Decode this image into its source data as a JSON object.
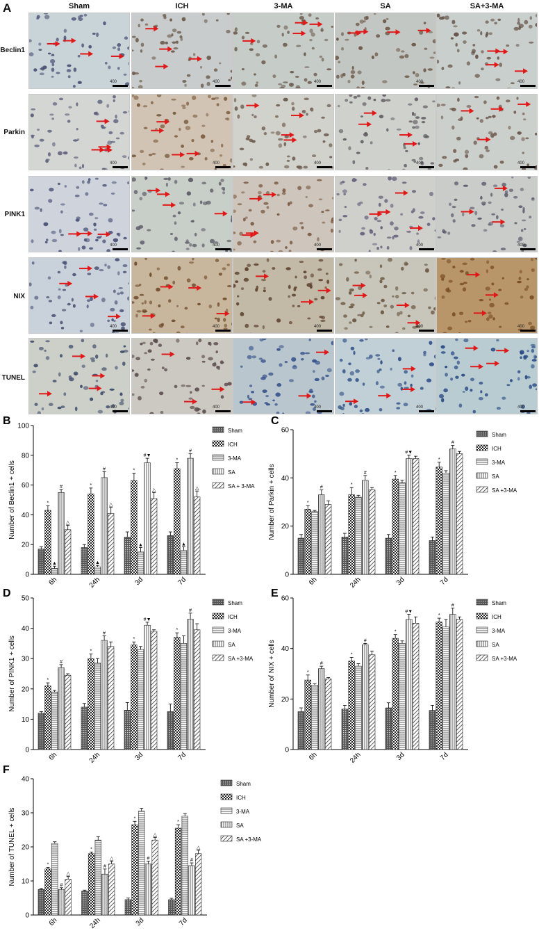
{
  "panel_a": {
    "letter": "A",
    "columns": [
      "Sham",
      "ICH",
      "3-MA",
      "SA",
      "SA+3-MA"
    ],
    "rows": [
      "Beclin1",
      "Parkin",
      "PINK1",
      "NIX",
      "TUNEL"
    ],
    "scale_label": "400",
    "backgrounds": {
      "Beclin1": [
        "#c8d4d8",
        "#c9cccc",
        "#c6ccc8",
        "#c3c7c3",
        "#c9cfcd"
      ],
      "Parkin": [
        "#d3d6d2",
        "#d1c4b4",
        "#d2d2cc",
        "#cfd1cd",
        "#ccd0cc"
      ],
      "PINK1": [
        "#cfd3dc",
        "#c8cfc8",
        "#cec6bc",
        "#cfd0cc",
        "#c9ccc9"
      ],
      "NIX": [
        "#c9d1da",
        "#c9b79d",
        "#c2b9a6",
        "#c8c6ba",
        "#b9956a"
      ],
      "TUNEL": [
        "#cdd0c8",
        "#ccc9c2",
        "#b9c6ce",
        "#c0d0d6",
        "#b8ccd2"
      ]
    },
    "nuclei_colors": {
      "Beclin1": [
        "#4a4f74",
        "#6a5a4a",
        "#6b5a4c",
        "#6a5544",
        "#645246"
      ],
      "Parkin": [
        "#5a5d7a",
        "#7a5a3c",
        "#6c5b4e",
        "#5f5a60",
        "#6a5448"
      ],
      "PINK1": [
        "#4c5278",
        "#5a5a66",
        "#7a5a42",
        "#65607a",
        "#5c5a6c"
      ],
      "NIX": [
        "#4c5478",
        "#6e4a2a",
        "#5e4430",
        "#6a5640",
        "#7a4e24"
      ],
      "TUNEL": [
        "#3c4a6a",
        "#5a4a4c",
        "#34508a",
        "#2e4e86",
        "#2a4a84"
      ]
    },
    "arrow_color": "#e01818"
  },
  "charts": [
    {
      "letter": "B",
      "type": "bar",
      "ylabel": "Number of Beclin1 + cells",
      "ylim": [
        0,
        100
      ],
      "yticks": [
        0,
        20,
        40,
        60,
        80,
        100
      ],
      "categories": [
        "6h",
        "24h",
        "3d",
        "7d"
      ],
      "legend": [
        "Sham",
        "ICH",
        "3-MA",
        "SA",
        "SA + 3-MA"
      ],
      "series": [
        {
          "name": "Sham",
          "values": [
            17,
            18,
            25,
            26
          ],
          "errors": [
            1.5,
            2,
            3.5,
            2.5
          ]
        },
        {
          "name": "ICH",
          "values": [
            43,
            54,
            63,
            71
          ],
          "errors": [
            3,
            4,
            5,
            4
          ]
        },
        {
          "name": "3-MA",
          "values": [
            4,
            5,
            15,
            16
          ],
          "errors": [
            1.5,
            1,
            3,
            2.5
          ]
        },
        {
          "name": "SA",
          "values": [
            55,
            65,
            75,
            78
          ],
          "errors": [
            2,
            4,
            3,
            3
          ]
        },
        {
          "name": "SA + 3-MA",
          "values": [
            30,
            41,
            51,
            52
          ],
          "errors": [
            3,
            4,
            4,
            4
          ]
        }
      ],
      "marks": [
        [
          "",
          "*",
          "▲",
          "#",
          "△"
        ],
        [
          "",
          "*",
          "▲",
          "#",
          "△"
        ],
        [
          "",
          "*",
          "▲",
          "#▼",
          "△"
        ],
        [
          "",
          "*",
          "▲",
          "#",
          "△"
        ]
      ]
    },
    {
      "letter": "C",
      "type": "bar",
      "ylabel": "Number of Parkin + cells",
      "ylim": [
        0,
        60
      ],
      "yticks": [
        0,
        20,
        40,
        60
      ],
      "categories": [
        "6h",
        "24h",
        "3d",
        "7d"
      ],
      "legend": [
        "Sham",
        "ICH",
        "3-MA",
        "SA",
        "SA +3-MA"
      ],
      "series": [
        {
          "name": "Sham",
          "values": [
            15,
            15.5,
            15,
            14
          ],
          "errors": [
            1.5,
            1.5,
            1.5,
            1.5
          ]
        },
        {
          "name": "ICH",
          "values": [
            27,
            33,
            39.5,
            44.5
          ],
          "errors": [
            1.5,
            3,
            1.5,
            2
          ]
        },
        {
          "name": "3-MA",
          "values": [
            26,
            32,
            38,
            42
          ],
          "errors": [
            0.5,
            0.8,
            1,
            1
          ]
        },
        {
          "name": "SA",
          "values": [
            33,
            39,
            48,
            52
          ],
          "errors": [
            2,
            2,
            1.5,
            1.5
          ]
        },
        {
          "name": "SA +3-MA",
          "values": [
            29,
            35,
            48,
            50
          ],
          "errors": [
            1.5,
            1,
            1,
            1
          ]
        }
      ],
      "marks": [
        [
          "",
          "*",
          "",
          "#",
          ""
        ],
        [
          "",
          "*",
          "",
          "#",
          ""
        ],
        [
          "",
          "*",
          "",
          "#▼",
          ""
        ],
        [
          "",
          "*",
          "",
          "#",
          ""
        ]
      ]
    },
    {
      "letter": "D",
      "type": "bar",
      "ylabel": "Number of PINK1 + cells",
      "ylim": [
        0,
        50
      ],
      "yticks": [
        0,
        10,
        20,
        30,
        40,
        50
      ],
      "categories": [
        "6h",
        "24h",
        "3d",
        "7d"
      ],
      "legend": [
        "Sham",
        "ICH",
        "3-MA",
        "SA",
        "SA +3-MA"
      ],
      "series": [
        {
          "name": "Sham",
          "values": [
            12,
            14,
            13,
            12.5
          ],
          "errors": [
            0.5,
            1.2,
            2.5,
            2.5
          ]
        },
        {
          "name": "ICH",
          "values": [
            21,
            30,
            34.5,
            37
          ],
          "errors": [
            1,
            1.5,
            1,
            1.5
          ]
        },
        {
          "name": "3-MA",
          "values": [
            19,
            28.5,
            33,
            35
          ],
          "errors": [
            0.5,
            1.5,
            1,
            2.5
          ]
        },
        {
          "name": "SA",
          "values": [
            27,
            36,
            41,
            43
          ],
          "errors": [
            1,
            1.5,
            1,
            2
          ]
        },
        {
          "name": "SA +3-MA",
          "values": [
            24.5,
            34,
            39,
            39.5
          ],
          "errors": [
            0.5,
            1.5,
            0.5,
            2
          ]
        }
      ],
      "marks": [
        [
          "",
          "*",
          "",
          "#",
          ""
        ],
        [
          "",
          "*",
          "",
          "#",
          ""
        ],
        [
          "",
          "*",
          "",
          "#▼",
          ""
        ],
        [
          "",
          "*",
          "",
          "#",
          ""
        ]
      ]
    },
    {
      "letter": "E",
      "type": "bar",
      "ylabel": "Number of NIX + cells",
      "ylim": [
        0,
        60
      ],
      "yticks": [
        0,
        20,
        40,
        60
      ],
      "categories": [
        "6h",
        "24h",
        "3d",
        "7d"
      ],
      "legend": [
        "Sham",
        "ICH",
        "3-MA",
        "SA",
        "SA +3-MA"
      ],
      "series": [
        {
          "name": "Sham",
          "values": [
            15,
            16,
            16.5,
            15.5
          ],
          "errors": [
            1.5,
            1.5,
            2,
            2
          ]
        },
        {
          "name": "ICH",
          "values": [
            27.5,
            35,
            44,
            50.5
          ],
          "errors": [
            2,
            1.5,
            1.5,
            1.5
          ]
        },
        {
          "name": "3-MA",
          "values": [
            25.5,
            33,
            42,
            48.5
          ],
          "errors": [
            0.5,
            1,
            1,
            3
          ]
        },
        {
          "name": "SA",
          "values": [
            32,
            41.5,
            51.5,
            53.5
          ],
          "errors": [
            1,
            0.5,
            2,
            2.5
          ]
        },
        {
          "name": "SA +3-MA",
          "values": [
            28,
            37.5,
            50,
            51.5
          ],
          "errors": [
            0.5,
            1.5,
            2.5,
            1
          ]
        }
      ],
      "marks": [
        [
          "",
          "*",
          "",
          "#",
          ""
        ],
        [
          "",
          "*",
          "",
          "#",
          ""
        ],
        [
          "",
          "*",
          "",
          "#▼",
          ""
        ],
        [
          "",
          "*",
          "",
          "#",
          ""
        ]
      ]
    },
    {
      "letter": "F",
      "type": "bar",
      "ylabel": "Number of TUNEL + cells",
      "ylim": [
        0,
        40
      ],
      "yticks": [
        0,
        10,
        20,
        30,
        40
      ],
      "categories": [
        "6h",
        "24h",
        "3d",
        "7d"
      ],
      "legend": [
        "Sham",
        "ICH",
        "3-MA",
        "SA",
        "SA +3-MA"
      ],
      "series": [
        {
          "name": "Sham",
          "values": [
            7.5,
            7,
            4.5,
            4.5
          ],
          "errors": [
            0.3,
            0.3,
            0.5,
            0.4
          ]
        },
        {
          "name": "ICH",
          "values": [
            13.5,
            18,
            26.5,
            25.5
          ],
          "errors": [
            0.5,
            0.5,
            1,
            1
          ]
        },
        {
          "name": "3-MA",
          "values": [
            21,
            22,
            30.5,
            29
          ],
          "errors": [
            0.5,
            1,
            0.8,
            0.8
          ]
        },
        {
          "name": "SA",
          "values": [
            7.5,
            12,
            15,
            14.5
          ],
          "errors": [
            0.5,
            1.5,
            0.8,
            0.8
          ]
        },
        {
          "name": "SA +3-MA",
          "values": [
            10.5,
            15,
            22,
            18
          ],
          "errors": [
            0.8,
            0.8,
            0.8,
            1
          ]
        }
      ],
      "marks": [
        [
          "",
          "*",
          "",
          "#",
          "△"
        ],
        [
          "",
          "*",
          "",
          "#",
          "△"
        ],
        [
          "",
          "*",
          "",
          "#",
          "△"
        ],
        [
          "",
          "*",
          "",
          "#",
          "△"
        ]
      ]
    }
  ]
}
